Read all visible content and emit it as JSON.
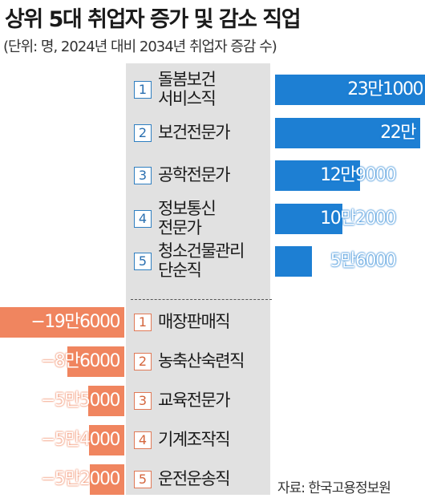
{
  "title": "상위 5대 취업자 증가 및 감소 직업",
  "subtitle": "(단위: 명, 2024년 대비 2034년 취업자 증감 수)",
  "source": "자료: 한국고용정보원",
  "colors": {
    "increase": "#1d7fd3",
    "decrease": "#f0855f",
    "panel": "#e1e1e1"
  },
  "chart_data": {
    "type": "bar",
    "orientation": "horizontal",
    "title": "상위 5대 취업자 증가 및 감소 직업",
    "unit": "명",
    "increase": {
      "items": [
        {
          "rank": "1",
          "label": "돌봄보건 서비스직",
          "lines": [
            "돌봄보건",
            "서비스직"
          ],
          "value": 231000,
          "value_label": "23만1000"
        },
        {
          "rank": "2",
          "label": "보건전문가",
          "lines": [
            "보건전문가"
          ],
          "value": 220000,
          "value_label": "22만"
        },
        {
          "rank": "3",
          "label": "공학전문가",
          "lines": [
            "공학전문가"
          ],
          "value": 129000,
          "value_label": "12만9000"
        },
        {
          "rank": "4",
          "label": "정보통신 전문가",
          "lines": [
            "정보통신",
            "전문가"
          ],
          "value": 102000,
          "value_label": "10만2000"
        },
        {
          "rank": "5",
          "label": "청소건물관리 단순직",
          "lines": [
            "청소건물관리",
            "단순직"
          ],
          "value": 56000,
          "value_label": "5만6000"
        }
      ]
    },
    "decrease": {
      "items": [
        {
          "rank": "1",
          "label": "매장판매직",
          "lines": [
            "매장판매직"
          ],
          "value": -196000,
          "value_label": "−19만6000"
        },
        {
          "rank": "2",
          "label": "농축산숙련직",
          "lines": [
            "농축산숙련직"
          ],
          "value": -86000,
          "value_label": "−8만6000"
        },
        {
          "rank": "3",
          "label": "교육전문가",
          "lines": [
            "교육전문가"
          ],
          "value": -55000,
          "value_label": "−5만5000"
        },
        {
          "rank": "4",
          "label": "기계조작직",
          "lines": [
            "기계조작직"
          ],
          "value": -54000,
          "value_label": "−5만4000"
        },
        {
          "rank": "5",
          "label": "운전운송직",
          "lines": [
            "운전운송직"
          ],
          "value": -52000,
          "value_label": "−5만2000"
        }
      ]
    }
  }
}
